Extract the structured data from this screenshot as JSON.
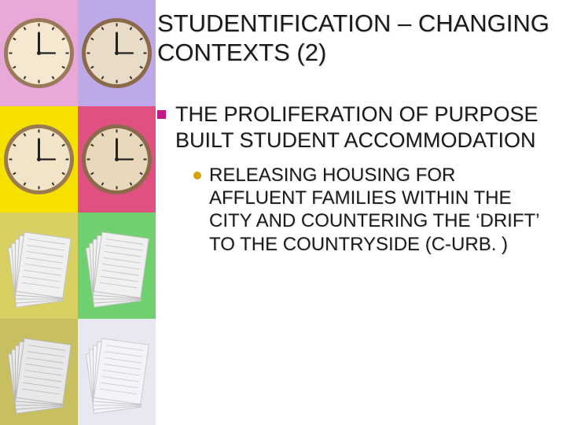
{
  "title": "STUDENTIFICATION – CHANGING CONTEXTS (2)",
  "bullet1": {
    "text": "THE PROLIFERATION OF PURPOSE BUILT STUDENT ACCOMMODATION",
    "marker_color": "#c71585"
  },
  "bullet2": {
    "text": "RELEASING HOUSING FOR AFFLUENT FAMILIES WITHIN THE CITY AND COUNTERING THE ‘DRIFT’ TO THE COUNTRYSIDE (C-URB. )",
    "marker_color": "#d4a500"
  },
  "text_color": "#1a1a1a",
  "tiles": {
    "t1": {
      "bg": "#e8a8d8",
      "type": "clock",
      "face": "#f5e8d0",
      "border": "#9a7a5a"
    },
    "t2": {
      "bg": "#bda8e8",
      "type": "clock",
      "face": "#e8dcc8",
      "border": "#8a6a4a"
    },
    "t3": {
      "bg": "#f5e000",
      "type": "clock",
      "face": "#f2e4c8",
      "border": "#9a7a50"
    },
    "t4": {
      "bg": "#e05080",
      "type": "clock",
      "face": "#e8d8bc",
      "border": "#8a6a4a"
    },
    "t5": {
      "bg": "#d8d060",
      "type": "papers",
      "paper": "#f0f0f0",
      "line": "#c0c0c0"
    },
    "t6": {
      "bg": "#70d070",
      "type": "papers",
      "paper": "#f0f0f0",
      "line": "#c0c0c0"
    },
    "t7": {
      "bg": "#c8c060",
      "type": "papers",
      "paper": "#e8e8e8",
      "line": "#b8b8b8"
    },
    "t8": {
      "bg": "#e8e8f0",
      "type": "papers",
      "paper": "#f4f4f8",
      "line": "#c8c8d0"
    }
  }
}
